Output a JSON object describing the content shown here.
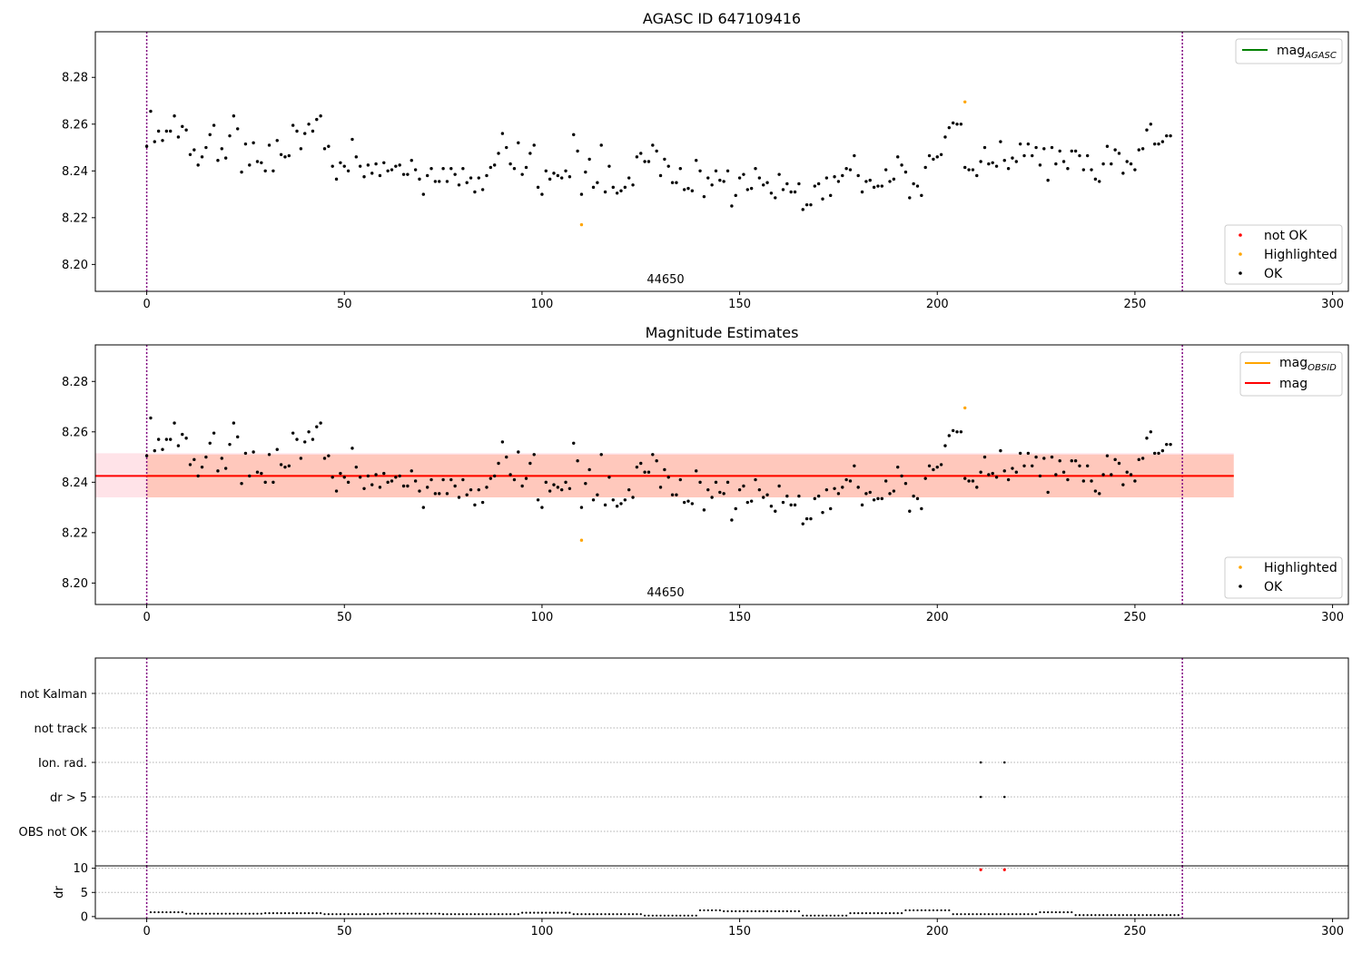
{
  "figure": {
    "bg": "#ffffff",
    "colors": {
      "ok": "#000000",
      "highlighted": "#ffa500",
      "not_ok": "#ff0000",
      "mag_agasc": "#008000",
      "mag_obsid": "#ffa500",
      "mag": "#ff0000",
      "band_outer": "#ffc0cb",
      "band_inner": "#ffa07a",
      "vline": "#800080",
      "grid": "#b0b0b0"
    }
  },
  "chart_data": [
    {
      "type": "scatter",
      "title": "AGASC ID 647109416",
      "annotation": {
        "text": "44650",
        "x": 127,
        "y": 8.1915
      },
      "xlim": [
        -13,
        304
      ],
      "ylim": [
        8.1885,
        8.2995
      ],
      "xticks": [
        0,
        50,
        100,
        150,
        200,
        250,
        300
      ],
      "xtick_labels": [
        "0",
        "50",
        "100",
        "150",
        "200",
        "250",
        "300"
      ],
      "yticks": [
        8.2,
        8.22,
        8.24,
        8.26,
        8.28
      ],
      "ytick_labels": [
        "8.20",
        "8.22",
        "8.24",
        "8.26",
        "8.28"
      ],
      "vlines": [
        0,
        262
      ],
      "legend_upper": {
        "position": "upper right",
        "entries": [
          {
            "label_main": "mag",
            "label_sub": "AGASC",
            "kind": "line",
            "color": "#008000"
          }
        ]
      },
      "legend_lower": {
        "position": "lower right",
        "entries": [
          {
            "label": "not OK",
            "color": "#ff0000"
          },
          {
            "label": "Highlighted",
            "color": "#ffa500"
          },
          {
            "label": "OK",
            "color": "#000000"
          }
        ]
      },
      "series_highlighted": [
        [
          110,
          8.217
        ],
        [
          207,
          8.2695
        ]
      ],
      "series_ok_y": [
        8.2505,
        8.2655,
        8.2525,
        8.257,
        8.253,
        8.257,
        8.257,
        8.2635,
        8.2545,
        8.259,
        8.2575,
        8.247,
        8.249,
        8.2425,
        8.246,
        8.25,
        8.2555,
        8.2595,
        8.2445,
        8.2495,
        8.2455,
        8.255,
        8.2635,
        8.258,
        8.2395,
        8.2515,
        8.2425,
        8.252,
        8.244,
        8.2435,
        8.24,
        8.251,
        8.24,
        8.253,
        8.247,
        8.246,
        8.2465,
        8.2595,
        8.257,
        8.2495,
        8.256,
        8.26,
        8.257,
        8.262,
        8.2635,
        8.2495,
        8.2505,
        8.242,
        8.2365,
        8.2435,
        8.242,
        8.24,
        8.2535,
        8.246,
        8.242,
        8.2375,
        8.2425,
        8.239,
        8.243,
        8.238,
        8.2435,
        8.24,
        8.2405,
        8.242,
        8.2425,
        8.2385,
        8.2385,
        8.2445,
        8.2405,
        8.2365,
        8.23,
        8.238,
        8.241,
        8.2355,
        8.2355,
        8.241,
        8.2355,
        8.241,
        8.2385,
        8.234,
        8.241,
        8.235,
        8.237,
        8.231,
        8.237,
        8.232,
        8.238,
        8.2415,
        8.2425,
        8.2475,
        8.256,
        8.25,
        8.243,
        8.241,
        8.252,
        8.2385,
        8.2415,
        8.2475,
        8.251,
        8.233,
        8.23,
        8.24,
        8.2365,
        8.239,
        8.238,
        8.237,
        8.24,
        8.2375,
        8.2555,
        8.2485,
        8.23,
        8.2395,
        8.245,
        8.233,
        8.235,
        8.251,
        8.231,
        8.242,
        8.233,
        8.2305,
        8.2315,
        8.233,
        8.237,
        8.234,
        8.246,
        8.2475,
        8.244,
        8.244,
        8.251,
        8.2485,
        8.238,
        8.245,
        8.242,
        8.235,
        8.235,
        8.241,
        8.232,
        8.2325,
        8.2315,
        8.2445,
        8.24,
        8.229,
        8.237,
        8.234,
        8.24,
        8.236,
        8.2355,
        8.24,
        8.225,
        8.2295,
        8.237,
        8.2385,
        8.232,
        8.2325,
        8.241,
        8.237,
        8.234,
        8.235,
        8.2305,
        8.2285,
        8.2385,
        8.232,
        8.2345,
        8.231,
        8.231,
        8.2345,
        8.2235,
        8.2255,
        8.2255,
        8.2335,
        8.2345,
        8.228,
        8.237,
        8.2295,
        8.2375,
        8.2355,
        8.238,
        8.241,
        8.2405,
        8.2465,
        8.238,
        8.231,
        8.2355,
        8.236,
        8.233,
        8.2335,
        8.2335,
        8.2405,
        8.2355,
        8.2365,
        8.246,
        8.2425,
        8.2395,
        8.2285,
        8.2345,
        8.2335,
        8.2295,
        8.2415,
        8.2465,
        8.245,
        8.246,
        8.247,
        8.2545,
        8.2585,
        8.2605,
        8.26,
        8.26,
        8.2415,
        8.2405,
        8.2405,
        8.238,
        8.244,
        8.25,
        8.243,
        8.2435,
        8.242,
        8.2525,
        8.2445,
        8.241,
        8.2455,
        8.244,
        8.2515,
        8.2465,
        8.2515,
        8.2465,
        8.25,
        8.2425,
        8.2495,
        8.236,
        8.25,
        8.243,
        8.2485,
        8.244,
        8.241,
        8.2485,
        8.2485,
        8.2465,
        8.2405,
        8.2465,
        8.2405,
        8.2365,
        8.2355,
        8.243,
        8.2505,
        8.243,
        8.249,
        8.2475,
        8.239,
        8.244,
        8.243,
        8.2405,
        8.249,
        8.2495,
        8.2575,
        8.26,
        8.2515,
        8.2515,
        8.2525,
        8.255,
        8.255
      ]
    },
    {
      "type": "scatter",
      "title": "Magnitude Estimates",
      "annotation": {
        "text": "44650",
        "x": 127,
        "y": 8.1915
      },
      "xlim": [
        -13,
        304
      ],
      "ylim": [
        8.1915,
        8.2945
      ],
      "xticks": [
        0,
        50,
        100,
        150,
        200,
        250,
        300
      ],
      "xtick_labels": [
        "0",
        "50",
        "100",
        "150",
        "200",
        "250",
        "300"
      ],
      "yticks": [
        8.2,
        8.22,
        8.24,
        8.26,
        8.28
      ],
      "ytick_labels": [
        "8.20",
        "8.22",
        "8.24",
        "8.26",
        "8.28"
      ],
      "vlines": [
        0,
        262
      ],
      "mag_obsid": {
        "x_start": 0,
        "x_end": 275,
        "y": 8.2425,
        "band_lo": 8.234,
        "band_hi": 8.251
      },
      "mag": {
        "x_start": -13,
        "x_end": 275,
        "y": 8.2425,
        "band_lo": 8.234,
        "band_hi": 8.2515
      },
      "legend_upper": {
        "position": "upper right",
        "entries": [
          {
            "label_main": "mag",
            "label_sub": "OBSID",
            "kind": "line",
            "color": "#ffa500"
          },
          {
            "label_main": "mag",
            "label_sub": "",
            "kind": "line",
            "color": "#ff0000"
          }
        ]
      },
      "legend_lower": {
        "position": "lower right",
        "entries": [
          {
            "label": "Highlighted",
            "color": "#ffa500"
          },
          {
            "label": "OK",
            "color": "#000000"
          }
        ]
      },
      "series_highlighted": [
        [
          110,
          8.217
        ],
        [
          207,
          8.2695
        ]
      ]
    },
    {
      "type": "scatter",
      "title": "",
      "categories": [
        "not Kalman",
        "not track",
        "Ion. rad.",
        "dr > 5",
        "OBS not OK"
      ],
      "flags": [
        {
          "category": "Ion. rad.",
          "x": [
            211,
            217
          ]
        },
        {
          "category": "dr > 5",
          "x": [
            211,
            217
          ]
        }
      ],
      "xlim": [
        -13,
        304
      ],
      "vlines": [
        0,
        262
      ]
    },
    {
      "type": "scatter",
      "ylabel": "dr",
      "xlim": [
        -13,
        304
      ],
      "ylim": [
        -0.4,
        10.5
      ],
      "xticks": [
        0,
        50,
        100,
        150,
        200,
        250,
        300
      ],
      "xtick_labels": [
        "0",
        "50",
        "100",
        "150",
        "200",
        "250",
        "300"
      ],
      "yticks": [
        0,
        5,
        10
      ],
      "ytick_labels": [
        "0",
        "5",
        "10"
      ],
      "vlines": [
        0,
        262
      ],
      "series_not_ok": [
        [
          211,
          9.7
        ],
        [
          217,
          9.7
        ]
      ],
      "segments": [
        {
          "x0": 1,
          "x1": 10,
          "y": 0.9
        },
        {
          "x0": 10,
          "x1": 30,
          "y": 0.6
        },
        {
          "x0": 30,
          "x1": 45,
          "y": 0.7
        },
        {
          "x0": 45,
          "x1": 60,
          "y": 0.5
        },
        {
          "x0": 60,
          "x1": 75,
          "y": 0.6
        },
        {
          "x0": 75,
          "x1": 95,
          "y": 0.5
        },
        {
          "x0": 95,
          "x1": 108,
          "y": 0.8
        },
        {
          "x0": 108,
          "x1": 126,
          "y": 0.5
        },
        {
          "x0": 126,
          "x1": 140,
          "y": 0.2
        },
        {
          "x0": 140,
          "x1": 146,
          "y": 1.3
        },
        {
          "x0": 146,
          "x1": 166,
          "y": 1.1
        },
        {
          "x0": 166,
          "x1": 178,
          "y": 0.2
        },
        {
          "x0": 178,
          "x1": 192,
          "y": 0.7
        },
        {
          "x0": 192,
          "x1": 204,
          "y": 1.3
        },
        {
          "x0": 204,
          "x1": 226,
          "y": 0.5
        },
        {
          "x0": 226,
          "x1": 235,
          "y": 0.9
        },
        {
          "x0": 235,
          "x1": 262,
          "y": 0.3
        }
      ]
    }
  ]
}
